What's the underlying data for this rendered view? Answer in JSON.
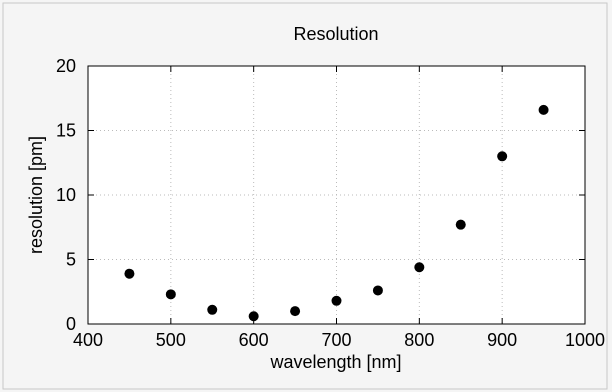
{
  "chart_data": {
    "type": "scatter",
    "title": "Resolution",
    "xlabel": "wavelength [nm]",
    "ylabel": "resolution [pm]",
    "xlim": [
      400,
      1000
    ],
    "ylim": [
      0,
      20
    ],
    "xticks": [
      400,
      500,
      600,
      700,
      800,
      900,
      1000
    ],
    "yticks": [
      0,
      5,
      10,
      15,
      20
    ],
    "grid": true,
    "legend": "none",
    "marker_color": "#000000",
    "background_color": "#f5f5f5",
    "plot_background_color": "#ffffff",
    "grid_color": "#bbbbbb",
    "points": [
      {
        "x": 450,
        "y": 3.9
      },
      {
        "x": 500,
        "y": 2.3
      },
      {
        "x": 550,
        "y": 1.1
      },
      {
        "x": 600,
        "y": 0.6
      },
      {
        "x": 650,
        "y": 1.0
      },
      {
        "x": 700,
        "y": 1.8
      },
      {
        "x": 750,
        "y": 2.6
      },
      {
        "x": 800,
        "y": 4.4
      },
      {
        "x": 850,
        "y": 7.7
      },
      {
        "x": 900,
        "y": 13.0
      },
      {
        "x": 950,
        "y": 16.6
      }
    ]
  }
}
